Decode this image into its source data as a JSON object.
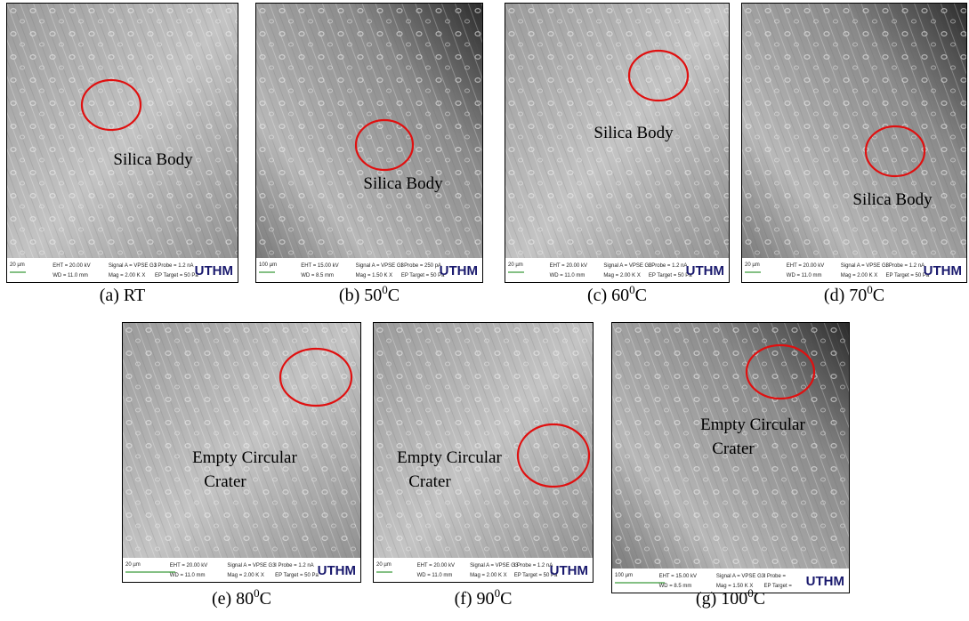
{
  "panels": [
    {
      "caption": {
        "prefix": "(a) RT"
      },
      "annotation": [
        "Silica Body"
      ],
      "info": [
        "20 µm",
        "EHT = 20.00 kV",
        "WD = 11.0 mm",
        "Signal A = VPSE G3",
        "Mag = 2.00 K X",
        "I Probe = 1.2 nA",
        "EP Target = 50 Pa",
        "UTHM"
      ]
    },
    {
      "caption": {
        "prefix": "(b) 50",
        "sup": "0",
        "suffix": "C"
      },
      "annotation": [
        "Silica Body"
      ],
      "info": [
        "100 µm",
        "EHT = 15.00 kV",
        "WD = 8.5 mm",
        "Signal A = VPSE G3",
        "Mag = 1.50 K X",
        "I Probe = 250 pA",
        "EP Target = 50 Pa",
        "UTHM"
      ]
    },
    {
      "caption": {
        "prefix": "(c) 60",
        "sup": "0",
        "suffix": "C"
      },
      "annotation": [
        "Silica Body"
      ],
      "info": [
        "20 µm",
        "EHT = 20.00 kV",
        "WD = 11.0 mm",
        "Signal A = VPSE G3",
        "Mag = 2.00 K X",
        "I Probe = 1.2 nA",
        "EP Target = 50 Pa",
        "UTHM"
      ]
    },
    {
      "caption": {
        "prefix": "(d) 70",
        "sup": "0",
        "suffix": "C"
      },
      "annotation": [
        "Silica Body"
      ],
      "info": [
        "20 µm",
        "EHT = 20.00 kV",
        "WD = 11.0 mm",
        "Signal A = VPSE G3",
        "Mag = 2.00 K X",
        "I Probe = 1.2 nA",
        "EP Target = 50 Pa",
        "UTHM"
      ]
    },
    {
      "caption": {
        "prefix": "(e) 80",
        "sup": "0",
        "suffix": "C"
      },
      "annotation": [
        "Empty Circular",
        "Crater"
      ],
      "info": [
        "20 µm",
        "EHT = 20.00 kV",
        "WD = 11.0 mm",
        "Signal A = VPSE G3",
        "Mag = 2.00 K X",
        "I Probe = 1.2 nA",
        "EP Target = 50 Pa",
        "UTHM"
      ]
    },
    {
      "caption": {
        "prefix": "(f) 90",
        "sup": "0",
        "suffix": "C"
      },
      "annotation": [
        "Empty Circular",
        "Crater"
      ],
      "info": [
        "20 µm",
        "EHT = 20.00 kV",
        "WD = 11.0 mm",
        "Signal A = VPSE G3",
        "Mag = 2.00 K X",
        "I Probe = 1.2 nA",
        "EP Target = 50 Pa",
        "UTHM"
      ]
    },
    {
      "caption": {
        "prefix": "(g) 100",
        "sup": "0",
        "suffix": "C"
      },
      "annotation": [
        "Empty Circular",
        "Crater"
      ],
      "info": [
        "100 µm",
        "EHT = 15.00 kV",
        "WD = 8.5 mm",
        "Signal A = VPSE G3",
        "Mag = 1.50 K X",
        "I Probe =",
        "EP Target =",
        "UTHM"
      ]
    }
  ]
}
